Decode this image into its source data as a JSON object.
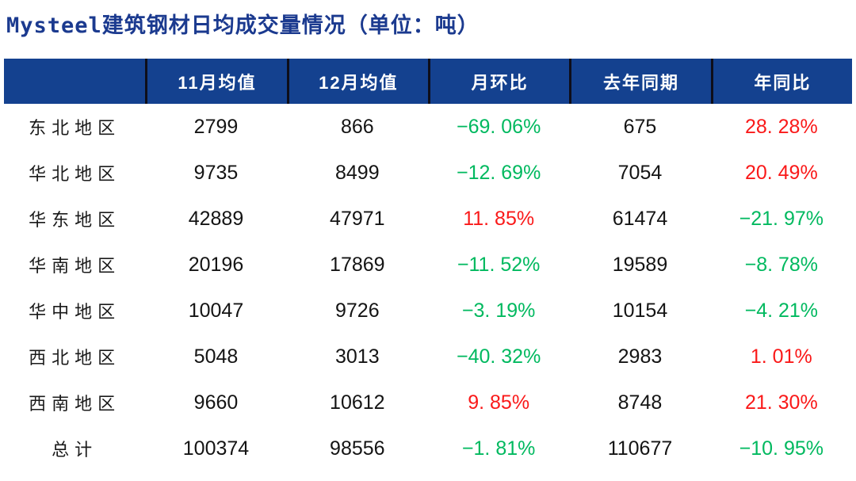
{
  "title": {
    "text": "Mysteel建筑钢材日均成交量情况（单位：吨）",
    "color": "#1b3a8f"
  },
  "colors": {
    "background": "#ffffff",
    "header_bg": "#14418f",
    "header_text": "#ffffff",
    "header_separator": "#0e0e1a",
    "body_text": "#141414",
    "positive_red": "#fa1919",
    "negative_green": "#00b95f"
  },
  "chart_data": {
    "type": "table",
    "title": "Mysteel建筑钢材日均成交量情况",
    "unit": "吨",
    "columns": [
      "",
      "11月均值",
      "12月均值",
      "月环比",
      "去年同期",
      "年同比"
    ],
    "rows": [
      {
        "region": "东北地区",
        "nov_avg": "2799",
        "dec_avg": "866",
        "mom_display": "−69. 06%",
        "mom_pct": -69.06,
        "mom_dir": "down",
        "last_year": "675",
        "yoy_display": "28. 28%",
        "yoy_pct": 28.28,
        "yoy_dir": "up"
      },
      {
        "region": "华北地区",
        "nov_avg": "9735",
        "dec_avg": "8499",
        "mom_display": "−12. 69%",
        "mom_pct": -12.69,
        "mom_dir": "down",
        "last_year": "7054",
        "yoy_display": "20. 49%",
        "yoy_pct": 20.49,
        "yoy_dir": "up"
      },
      {
        "region": "华东地区",
        "nov_avg": "42889",
        "dec_avg": "47971",
        "mom_display": "11. 85%",
        "mom_pct": 11.85,
        "mom_dir": "up",
        "last_year": "61474",
        "yoy_display": "−21. 97%",
        "yoy_pct": -21.97,
        "yoy_dir": "down"
      },
      {
        "region": "华南地区",
        "nov_avg": "20196",
        "dec_avg": "17869",
        "mom_display": "−11. 52%",
        "mom_pct": -11.52,
        "mom_dir": "down",
        "last_year": "19589",
        "yoy_display": "−8. 78%",
        "yoy_pct": -8.78,
        "yoy_dir": "down"
      },
      {
        "region": "华中地区",
        "nov_avg": "10047",
        "dec_avg": "9726",
        "mom_display": "−3. 19%",
        "mom_pct": -3.19,
        "mom_dir": "down",
        "last_year": "10154",
        "yoy_display": "−4. 21%",
        "yoy_pct": -4.21,
        "yoy_dir": "down"
      },
      {
        "region": "西北地区",
        "nov_avg": "5048",
        "dec_avg": "3013",
        "mom_display": "−40. 32%",
        "mom_pct": -40.32,
        "mom_dir": "down",
        "last_year": "2983",
        "yoy_display": "1. 01%",
        "yoy_pct": 1.01,
        "yoy_dir": "up"
      },
      {
        "region": "西南地区",
        "nov_avg": "9660",
        "dec_avg": "10612",
        "mom_display": "9. 85%",
        "mom_pct": 9.85,
        "mom_dir": "up",
        "last_year": "8748",
        "yoy_display": "21. 30%",
        "yoy_pct": 21.3,
        "yoy_dir": "up"
      },
      {
        "region": "总计",
        "nov_avg": "100374",
        "dec_avg": "98556",
        "mom_display": "−1. 81%",
        "mom_pct": -1.81,
        "mom_dir": "down",
        "last_year": "110677",
        "yoy_display": "−10. 95%",
        "yoy_pct": -10.95,
        "yoy_dir": "down"
      }
    ]
  }
}
